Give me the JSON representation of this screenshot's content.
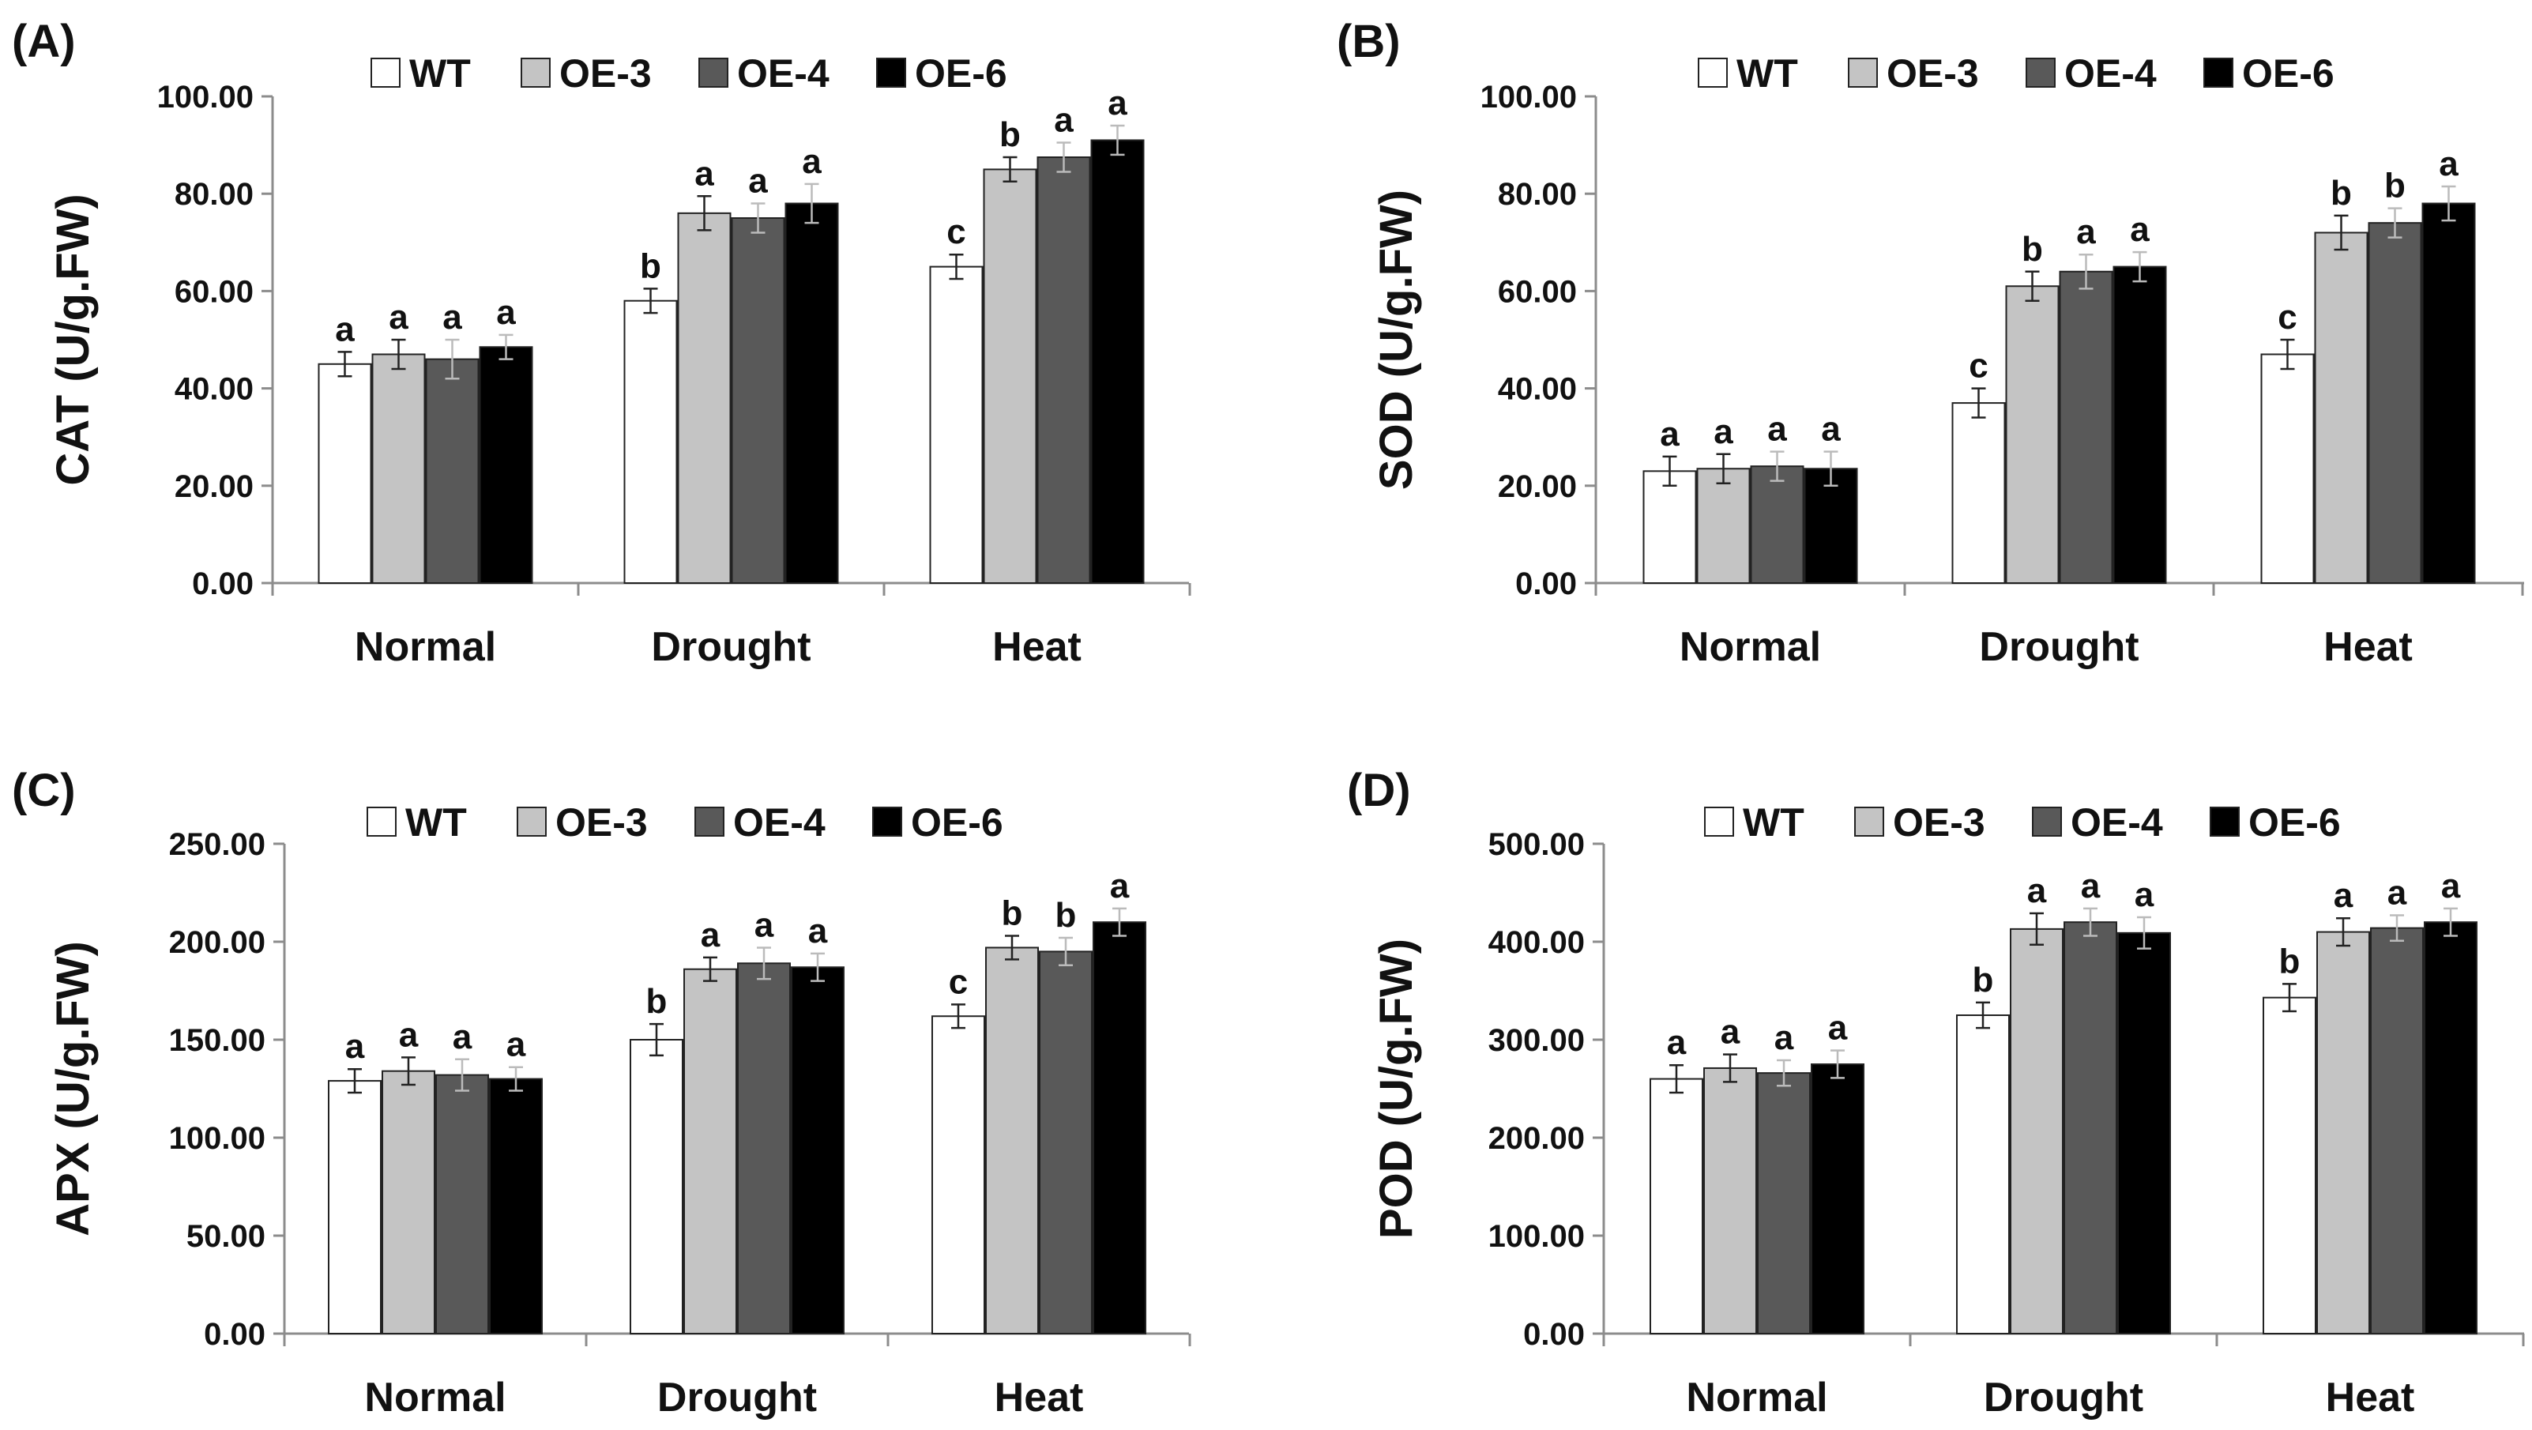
{
  "colors": {
    "WT": "#ffffff",
    "OE-3": "#c4c4c4",
    "OE-4": "#595959",
    "OE-6": "#000000",
    "axis": "#8c8c8c",
    "bar_stroke": "#222222"
  },
  "chart_data": [
    {
      "type": "bar",
      "panel_label": "(A)",
      "ylabel": "CAT (U/g.FW)",
      "xlabel": "",
      "categories": [
        "Normal",
        "Drought",
        "Heat"
      ],
      "ylim": [
        0,
        100
      ],
      "yticks": [
        0,
        20,
        40,
        60,
        80,
        100
      ],
      "ytick_labels": [
        "0.00",
        "20.00",
        "40.00",
        "60.00",
        "80.00",
        "100.00"
      ],
      "legend": [
        "WT",
        "OE-3",
        "OE-4",
        "OE-6"
      ],
      "legend_position": "top-center",
      "grid": false,
      "series": [
        {
          "name": "WT",
          "values": [
            45,
            58,
            65
          ],
          "errors": [
            2.5,
            2.5,
            2.5
          ],
          "labels": [
            "a",
            "b",
            "c"
          ]
        },
        {
          "name": "OE-3",
          "values": [
            47,
            76,
            85
          ],
          "errors": [
            3,
            3.5,
            2.5
          ],
          "labels": [
            "a",
            "a",
            "b"
          ]
        },
        {
          "name": "OE-4",
          "values": [
            46,
            75,
            87.5
          ],
          "errors": [
            4,
            3,
            3
          ],
          "labels": [
            "a",
            "a",
            "a"
          ]
        },
        {
          "name": "OE-6",
          "values": [
            48.5,
            78,
            91
          ],
          "errors": [
            2.5,
            4,
            3
          ],
          "labels": [
            "a",
            "a",
            "a"
          ]
        }
      ]
    },
    {
      "type": "bar",
      "panel_label": "(B)",
      "ylabel": "SOD (U/g.FW)",
      "xlabel": "",
      "categories": [
        "Normal",
        "Drought",
        "Heat"
      ],
      "ylim": [
        0,
        100
      ],
      "yticks": [
        0,
        20,
        40,
        60,
        80,
        100
      ],
      "ytick_labels": [
        "0.00",
        "20.00",
        "40.00",
        "60.00",
        "80.00",
        "100.00"
      ],
      "legend": [
        "WT",
        "OE-3",
        "OE-4",
        "OE-6"
      ],
      "legend_position": "top-center",
      "grid": false,
      "series": [
        {
          "name": "WT",
          "values": [
            23,
            37,
            47
          ],
          "errors": [
            3,
            3,
            3
          ],
          "labels": [
            "a",
            "c",
            "c"
          ]
        },
        {
          "name": "OE-3",
          "values": [
            23.5,
            61,
            72
          ],
          "errors": [
            3,
            3,
            3.5
          ],
          "labels": [
            "a",
            "b",
            "b"
          ]
        },
        {
          "name": "OE-4",
          "values": [
            24,
            64,
            74
          ],
          "errors": [
            3,
            3.5,
            3
          ],
          "labels": [
            "a",
            "a",
            "b"
          ]
        },
        {
          "name": "OE-6",
          "values": [
            23.5,
            65,
            78
          ],
          "errors": [
            3.5,
            3,
            3.5
          ],
          "labels": [
            "a",
            "a",
            "a"
          ]
        }
      ]
    },
    {
      "type": "bar",
      "panel_label": "(C)",
      "ylabel": "APX (U/g.FW)",
      "xlabel": "",
      "categories": [
        "Normal",
        "Drought",
        "Heat"
      ],
      "ylim": [
        0,
        250
      ],
      "yticks": [
        0,
        50,
        100,
        150,
        200,
        250
      ],
      "ytick_labels": [
        "0.00",
        "50.00",
        "100.00",
        "150.00",
        "200.00",
        "250.00"
      ],
      "legend": [
        "WT",
        "OE-3",
        "OE-4",
        "OE-6"
      ],
      "legend_position": "top-center",
      "grid": false,
      "series": [
        {
          "name": "WT",
          "values": [
            129,
            150,
            162
          ],
          "errors": [
            6,
            8,
            6
          ],
          "labels": [
            "a",
            "b",
            "c"
          ]
        },
        {
          "name": "OE-3",
          "values": [
            134,
            186,
            197
          ],
          "errors": [
            7,
            6,
            6
          ],
          "labels": [
            "a",
            "a",
            "b"
          ]
        },
        {
          "name": "OE-4",
          "values": [
            132,
            189,
            195
          ],
          "errors": [
            8,
            8,
            7
          ],
          "labels": [
            "a",
            "a",
            "b"
          ]
        },
        {
          "name": "OE-6",
          "values": [
            130,
            187,
            210
          ],
          "errors": [
            6,
            7,
            7
          ],
          "labels": [
            "a",
            "a",
            "a"
          ]
        }
      ]
    },
    {
      "type": "bar",
      "panel_label": "(D)",
      "ylabel": "POD (U/g.FW)",
      "xlabel": "",
      "categories": [
        "Normal",
        "Drought",
        "Heat"
      ],
      "ylim": [
        0,
        500
      ],
      "yticks": [
        0,
        100,
        200,
        300,
        400,
        500
      ],
      "ytick_labels": [
        "0.00",
        "100.00",
        "200.00",
        "300.00",
        "400.00",
        "500.00"
      ],
      "legend": [
        "WT",
        "OE-3",
        "OE-4",
        "OE-6"
      ],
      "legend_position": "top-center",
      "grid": false,
      "series": [
        {
          "name": "WT",
          "values": [
            260,
            325,
            343
          ],
          "errors": [
            14,
            13,
            14
          ],
          "labels": [
            "a",
            "b",
            "b"
          ]
        },
        {
          "name": "OE-3",
          "values": [
            271,
            413,
            410
          ],
          "errors": [
            14,
            16,
            14
          ],
          "labels": [
            "a",
            "a",
            "a"
          ]
        },
        {
          "name": "OE-4",
          "values": [
            266,
            420,
            414
          ],
          "errors": [
            13,
            14,
            13
          ],
          "labels": [
            "a",
            "a",
            "a"
          ]
        },
        {
          "name": "OE-6",
          "values": [
            275,
            409,
            420
          ],
          "errors": [
            14,
            16,
            14
          ],
          "labels": [
            "a",
            "a",
            "a"
          ]
        }
      ]
    }
  ]
}
